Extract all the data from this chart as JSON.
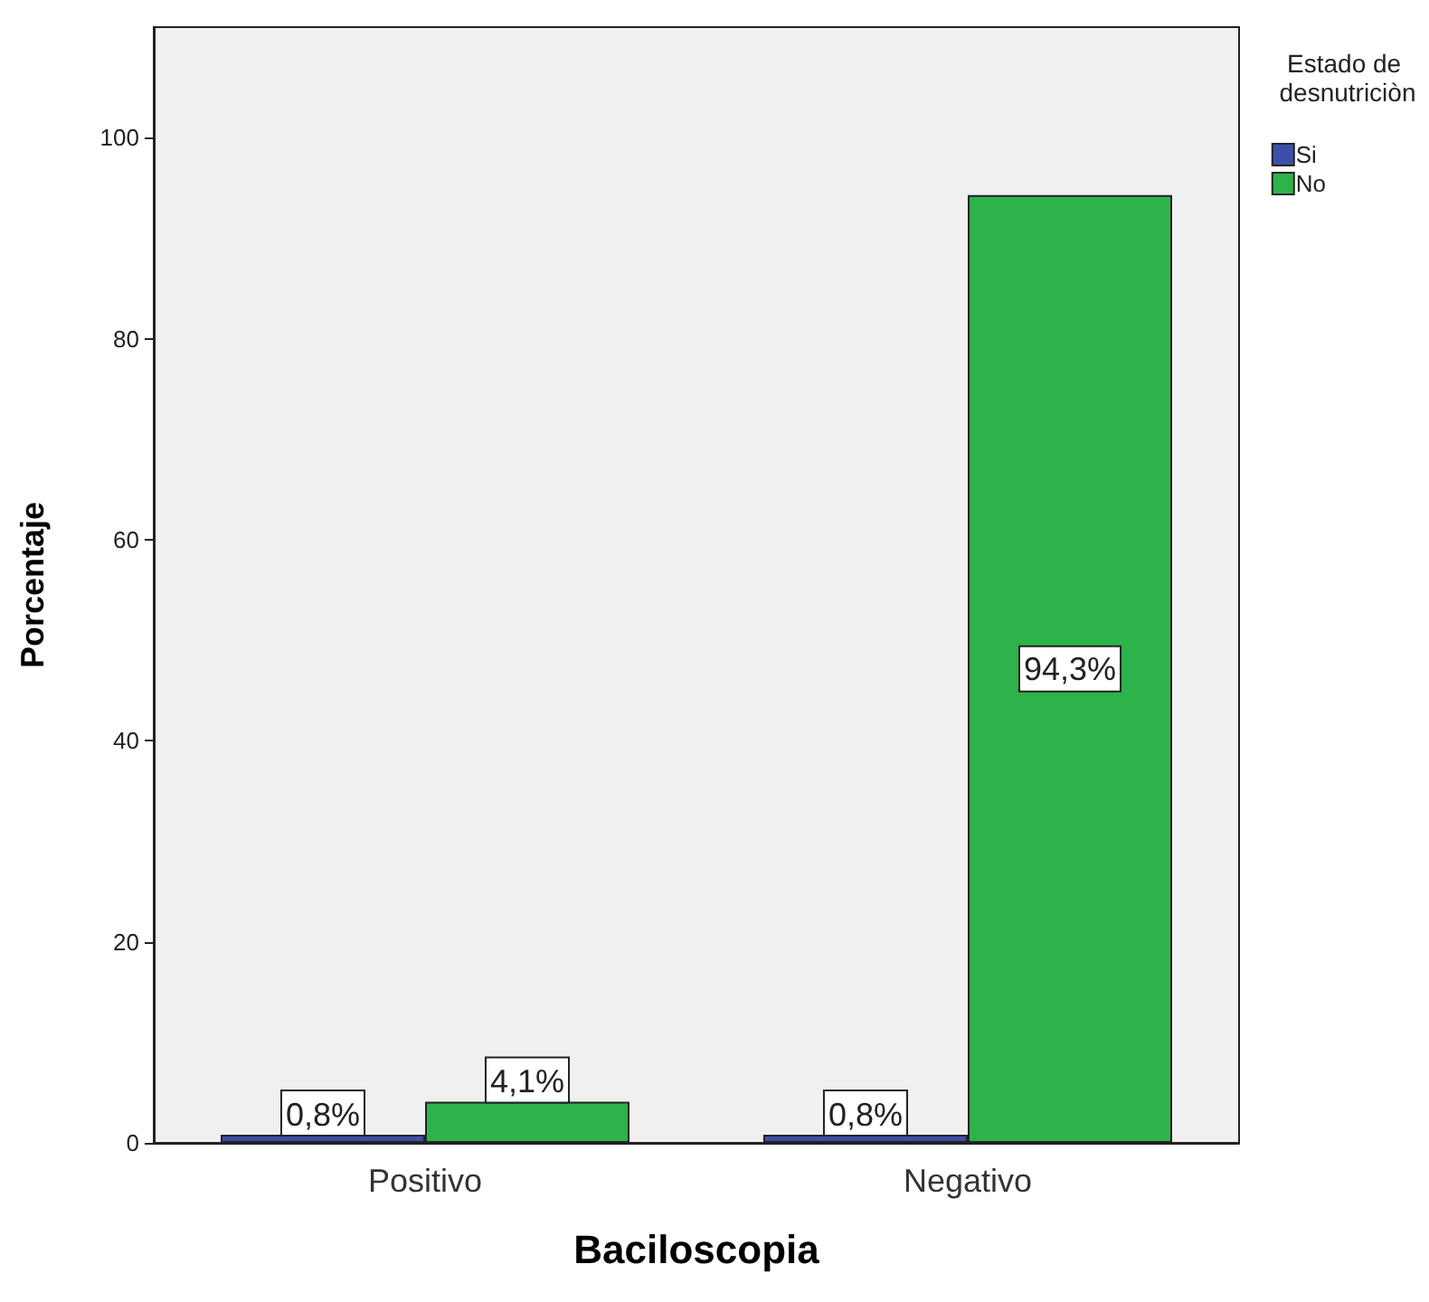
{
  "chart_data": {
    "type": "bar",
    "xlabel": "Baciloscopia",
    "ylabel": "Porcentaje",
    "legend_title": "Estado de desnutriciòn",
    "categories": [
      "Positivo",
      "Negativo"
    ],
    "series": [
      {
        "name": "Si",
        "color": "#3d4fa8",
        "values": [
          0.8,
          0.8
        ],
        "value_labels": [
          "0,8%",
          "0,8%"
        ]
      },
      {
        "name": "No",
        "color": "#2db34a",
        "values": [
          4.1,
          94.3
        ],
        "value_labels": [
          "4,1%",
          "94,3%"
        ]
      }
    ],
    "ylim": [
      0,
      111
    ],
    "yticks": [
      0,
      20,
      40,
      60,
      80,
      100
    ],
    "grid": false,
    "legend": "top right"
  }
}
